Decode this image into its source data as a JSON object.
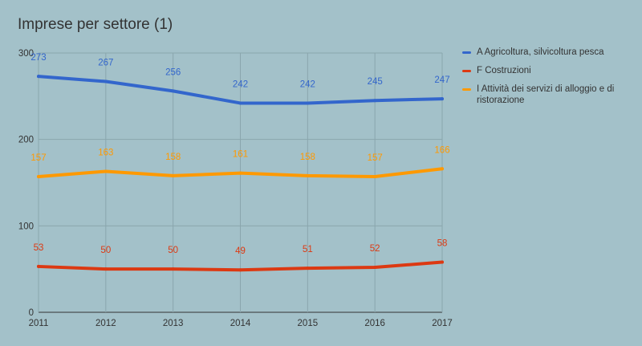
{
  "chart_data": {
    "type": "line",
    "title": "Imprese per settore (1)",
    "categories": [
      "2011",
      "2012",
      "2013",
      "2014",
      "2015",
      "2016",
      "2017"
    ],
    "ylim": [
      0,
      300
    ],
    "yticks": [
      0,
      100,
      200,
      300
    ],
    "xlabel": "",
    "ylabel": "",
    "grid": true,
    "legend_position": "right",
    "series": [
      {
        "name": "A Agricoltura, silvicoltura pesca",
        "color": "#3366cc",
        "values": [
          273,
          267,
          256,
          242,
          242,
          245,
          247
        ]
      },
      {
        "name": "F Costruzioni",
        "color": "#dc3912",
        "values": [
          53,
          50,
          50,
          49,
          51,
          52,
          58
        ]
      },
      {
        "name": "I Attività dei servizi di alloggio e di ristorazione",
        "color": "#ff9900",
        "values": [
          157,
          163,
          158,
          161,
          158,
          157,
          166
        ]
      }
    ]
  }
}
